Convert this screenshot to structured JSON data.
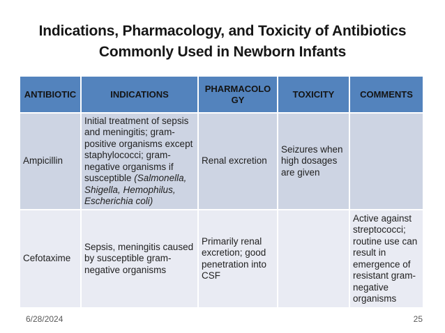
{
  "slide": {
    "title_line1": "Indications, Pharmacology, and Toxicity of Antibiotics",
    "title_line2": "Commonly Used in Newborn Infants"
  },
  "table": {
    "columns": [
      "ANTIBIOTIC",
      "INDICATIONS",
      "PHARMACOLOGY",
      "TOXICITY",
      "COMMENTS"
    ],
    "rows": [
      {
        "antibiotic": "Ampicillin",
        "indications_main": "Initial treatment of sepsis and meningitis; gram-positive organisms except staphylococci; gram-negative organisms if susceptible ",
        "indications_emphasis": "(Salmonella, Shigella, Hemophilus, Escherichia coli)",
        "pharmacology": "Renal excretion",
        "toxicity": "Seizures when high dosages are given",
        "comments": ""
      },
      {
        "antibiotic": "Cefotaxime",
        "indications_main": "Sepsis, meningitis caused by susceptible gram-negative organisms",
        "indications_emphasis": "",
        "pharmacology": "Primarily renal excretion; good penetration into CSF",
        "toxicity": "",
        "comments": "Active against streptococci; routine use can result in emergence of resistant gram-negative organisms"
      }
    ]
  },
  "footer": {
    "date": "6/28/2024",
    "page_number": "25"
  },
  "colors": {
    "header_background": "#5383BD",
    "band_row_dark": "#CDD4E3",
    "band_row_light": "#E9EBF3",
    "cell_border": "#FFFFFF",
    "title_text": "#161616",
    "body_text": "#212121",
    "footer_text": "#595959"
  }
}
